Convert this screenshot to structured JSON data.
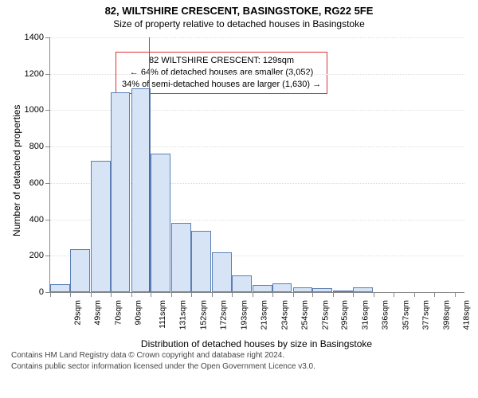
{
  "title_line1": "82, WILTSHIRE CRESCENT, BASINGSTOKE, RG22 5FE",
  "title_line2": "Size of property relative to detached houses in Basingstoke",
  "yaxis_title": "Number of detached properties",
  "xaxis_title": "Distribution of detached houses by size in Basingstoke",
  "footer_line1": "Contains HM Land Registry data © Crown copyright and database right 2024.",
  "footer_line2": "Contains public sector information licensed under the Open Government Licence v3.0.",
  "annotation": {
    "line1": "82 WILTSHIRE CRESCENT: 129sqm",
    "line2": "← 64% of detached houses are smaller (3,052)",
    "line3": "34% of semi-detached houses are larger (1,630) →"
  },
  "chart": {
    "type": "histogram",
    "background_color": "#ffffff",
    "grid_color": "#dddddd",
    "axis_color": "#888888",
    "bar_fill": "#d6e4f5",
    "bar_border": "#5b7fb5",
    "marker_color": "#e03030",
    "marker_value": 129,
    "ylim": [
      0,
      1400
    ],
    "ytick_step": 200,
    "xlim_min": 29,
    "xlim_max": 449,
    "x_bin_width": 20.5,
    "x_ticks": [
      29,
      49,
      70,
      90,
      111,
      131,
      152,
      172,
      193,
      213,
      234,
      254,
      275,
      295,
      316,
      336,
      357,
      377,
      398,
      418,
      439
    ],
    "x_tick_labels": [
      "29sqm",
      "49sqm",
      "70sqm",
      "90sqm",
      "111sqm",
      "131sqm",
      "152sqm",
      "172sqm",
      "193sqm",
      "213sqm",
      "234sqm",
      "254sqm",
      "275sqm",
      "295sqm",
      "316sqm",
      "336sqm",
      "357sqm",
      "377sqm",
      "398sqm",
      "418sqm",
      "439sqm"
    ],
    "y_ticks": [
      0,
      200,
      400,
      600,
      800,
      1000,
      1200,
      1400
    ],
    "bars": [
      {
        "x": 29,
        "count": 45
      },
      {
        "x": 49,
        "count": 235
      },
      {
        "x": 70,
        "count": 720
      },
      {
        "x": 90,
        "count": 1100
      },
      {
        "x": 111,
        "count": 1120
      },
      {
        "x": 131,
        "count": 760
      },
      {
        "x": 152,
        "count": 380
      },
      {
        "x": 172,
        "count": 335
      },
      {
        "x": 193,
        "count": 220
      },
      {
        "x": 213,
        "count": 90
      },
      {
        "x": 234,
        "count": 40
      },
      {
        "x": 254,
        "count": 48
      },
      {
        "x": 275,
        "count": 28
      },
      {
        "x": 295,
        "count": 20
      },
      {
        "x": 316,
        "count": 8
      },
      {
        "x": 336,
        "count": 25
      },
      {
        "x": 357,
        "count": 0
      },
      {
        "x": 377,
        "count": 0
      },
      {
        "x": 398,
        "count": 0
      },
      {
        "x": 418,
        "count": 0
      },
      {
        "x": 439,
        "count": 0
      }
    ]
  }
}
